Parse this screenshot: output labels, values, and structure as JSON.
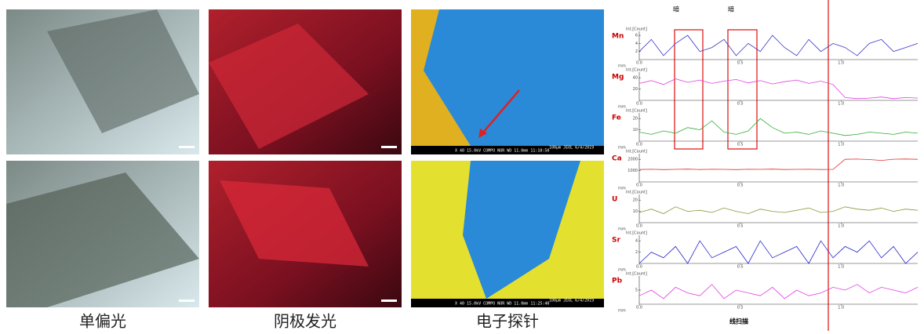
{
  "images": [
    {
      "caption": "单偏光"
    },
    {
      "caption": "阴极发光"
    },
    {
      "caption": "电子探针",
      "info_top": "X 40   15.0kV COMPO   NOR   WD 11.0mm 11:10:50",
      "scale_top": "100μm JEOL 6/4/2019",
      "info_bottom": "X 40   15.0kV COMPO   NOR   WD 11.0mm 11:25:40",
      "scale_bottom": "100μm JEOL 6/4/2019"
    }
  ],
  "chart_data": {
    "type": "line",
    "title": "线扫描",
    "dark_labels": [
      "暗",
      "暗"
    ],
    "y_unit": "Int.[Count]",
    "x_unit": "mm",
    "x": [
      0,
      0.06,
      0.12,
      0.18,
      0.24,
      0.3,
      0.36,
      0.42,
      0.48,
      0.54,
      0.6,
      0.66,
      0.72,
      0.78,
      0.84,
      0.9,
      0.96,
      1.02,
      1.08,
      1.14,
      1.2,
      1.26,
      1.32,
      1.38
    ],
    "xlim": [
      0,
      1.38
    ],
    "xticks": [
      {
        "value": 0,
        "label": "0.0"
      },
      {
        "value": 0.5,
        "label": "0.5"
      },
      {
        "value": 1,
        "label": "1.0"
      }
    ],
    "panels": [
      {
        "name": "Mn",
        "color": "#3333cc",
        "label_color": "#cc0000",
        "ylim": [
          0,
          7
        ],
        "yticks": [
          2,
          4,
          6
        ],
        "values": [
          2,
          5,
          1,
          4,
          6,
          2,
          3,
          5,
          1,
          4,
          2,
          6,
          3,
          1,
          5,
          2,
          4,
          3,
          1,
          4,
          5,
          2,
          3,
          4
        ]
      },
      {
        "name": "Mg",
        "color": "#e040e0",
        "label_color": "#cc0000",
        "ylim": [
          0,
          50
        ],
        "yticks": [
          20,
          40
        ],
        "values": [
          30,
          35,
          28,
          38,
          32,
          36,
          30,
          34,
          37,
          31,
          35,
          29,
          33,
          36,
          30,
          34,
          28,
          5,
          3,
          4,
          6,
          3,
          5,
          4
        ]
      },
      {
        "name": "Fe",
        "color": "#33aa33",
        "label_color": "#cc0000",
        "ylim": [
          0,
          25
        ],
        "yticks": [
          10,
          20
        ],
        "values": [
          8,
          6,
          9,
          7,
          12,
          10,
          18,
          8,
          6,
          9,
          20,
          12,
          7,
          8,
          6,
          9,
          7,
          5,
          6,
          8,
          7,
          6,
          8,
          7
        ]
      },
      {
        "name": "Ca",
        "color": "#e03030",
        "label_color": "#cc0000",
        "ylim": [
          0,
          2500
        ],
        "yticks": [
          1000,
          2000
        ],
        "values": [
          1100,
          1120,
          1090,
          1110,
          1130,
          1100,
          1120,
          1110,
          1090,
          1120,
          1110,
          1130,
          1100,
          1110,
          1120,
          1100,
          1110,
          2000,
          2020,
          1980,
          1900,
          2010,
          2030,
          2000
        ]
      },
      {
        "name": "U",
        "color": "#889933",
        "label_color": "#cc0000",
        "ylim": [
          0,
          25
        ],
        "yticks": [
          10,
          20
        ],
        "values": [
          9,
          12,
          8,
          14,
          10,
          11,
          9,
          13,
          10,
          8,
          12,
          10,
          9,
          11,
          13,
          9,
          10,
          14,
          12,
          11,
          13,
          10,
          12,
          11
        ]
      },
      {
        "name": "Sr",
        "color": "#2222cc",
        "label_color": "#cc0000",
        "ylim": [
          0,
          5
        ],
        "yticks": [
          2,
          4
        ],
        "values": [
          0,
          2,
          1,
          3,
          0,
          4,
          1,
          2,
          3,
          0,
          4,
          1,
          2,
          3,
          0,
          4,
          1,
          3,
          2,
          4,
          1,
          3,
          0,
          2
        ]
      },
      {
        "name": "Pb",
        "color": "#e040e0",
        "label_color": "#cc0000",
        "ylim": [
          0,
          10
        ],
        "yticks": [
          5
        ],
        "values": [
          3,
          5,
          2,
          6,
          4,
          3,
          7,
          2,
          5,
          4,
          3,
          6,
          2,
          5,
          3,
          4,
          6,
          5,
          7,
          4,
          6,
          5,
          4,
          6
        ]
      }
    ]
  }
}
